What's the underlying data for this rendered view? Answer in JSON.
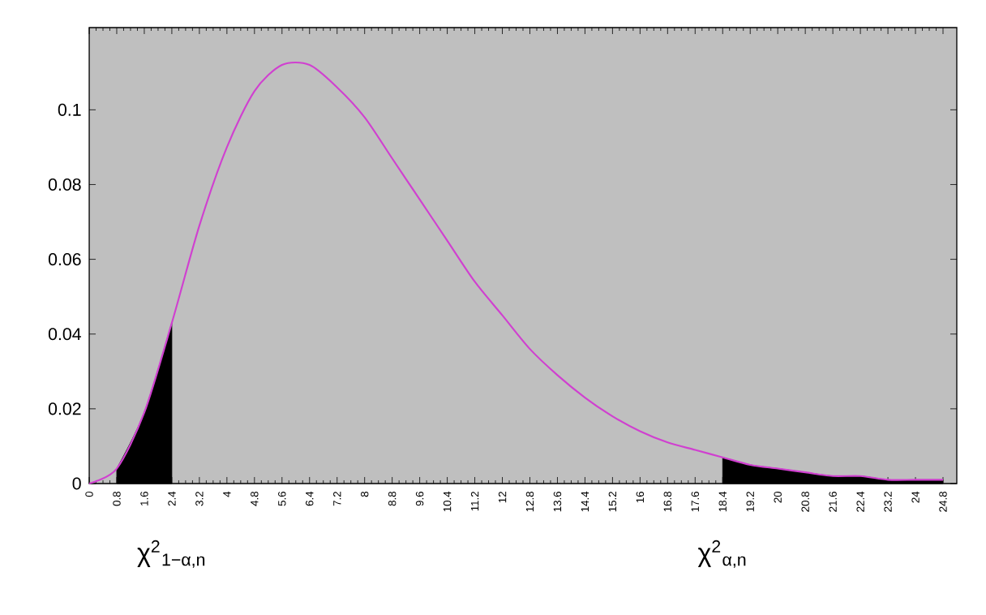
{
  "chart_data": {
    "type": "line",
    "xlim": [
      0,
      25.2
    ],
    "ylim": [
      0,
      0.122
    ],
    "xticks": [
      0,
      0.8,
      1.6,
      2.4,
      3.2,
      4,
      4.8,
      5.6,
      6.4,
      7.2,
      8,
      8.8,
      9.6,
      10.4,
      11.2,
      12,
      12.8,
      13.6,
      14.4,
      15.2,
      16,
      16.8,
      17.6,
      18.4,
      19.2,
      20,
      20.8,
      21.6,
      22.4,
      23.2,
      24,
      24.8
    ],
    "yticks": [
      0,
      0.02,
      0.04,
      0.06,
      0.08,
      0.1
    ],
    "series": [
      {
        "type": "area",
        "color": "#000000",
        "x": [
          0.8,
          1.6,
          2.4
        ],
        "values": [
          0.004,
          0.019,
          0.043
        ]
      },
      {
        "type": "area",
        "color": "#000000",
        "x": [
          18.4,
          19.2,
          20,
          20.8,
          21.6,
          22.4,
          23.2,
          24,
          24.8
        ],
        "values": [
          0.007,
          0.005,
          0.004,
          0.003,
          0.002,
          0.002,
          0.001,
          0.001,
          0.001
        ]
      },
      {
        "color": "#d040d0",
        "x": [
          0,
          0.8,
          1.6,
          2.4,
          3.2,
          4,
          4.8,
          5.6,
          6.4,
          7.2,
          8,
          8.8,
          9.6,
          10.4,
          11.2,
          12,
          12.8,
          13.6,
          14.4,
          15.2,
          16,
          16.8,
          17.6,
          18.4,
          19.2,
          20,
          20.8,
          21.6,
          22.4,
          23.2,
          24,
          24.8
        ],
        "values": [
          0,
          0.004,
          0.019,
          0.043,
          0.069,
          0.09,
          0.105,
          0.112,
          0.112,
          0.106,
          0.098,
          0.087,
          0.076,
          0.065,
          0.054,
          0.045,
          0.036,
          0.029,
          0.023,
          0.018,
          0.014,
          0.011,
          0.009,
          0.007,
          0.005,
          0.004,
          0.003,
          0.002,
          0.002,
          0.001,
          0.001,
          0.001
        ]
      }
    ],
    "annotations": [
      {
        "text": "χ$^{2}$$_{1−α,n}$",
        "x": 2.4,
        "y": 0
      },
      {
        "text": "χ$^{2}$$_{α,n}$",
        "x": 18.4,
        "y": 0
      }
    ]
  }
}
